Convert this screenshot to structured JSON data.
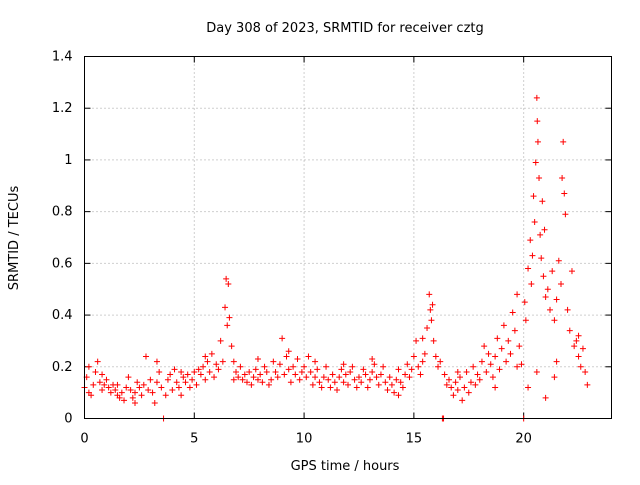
{
  "chart_data": {
    "type": "scatter",
    "title": "Day 308 of 2023, SRMTID for receiver cztg",
    "xlabel": "GPS time / hours",
    "ylabel": "SRMTID / TECUs",
    "xlim": [
      0,
      24
    ],
    "ylim": [
      0,
      1.4
    ],
    "x_ticks": [
      "0",
      "5",
      "10",
      "15",
      "20"
    ],
    "x_tick_values": [
      0,
      5,
      10,
      15,
      20
    ],
    "y_ticks": [
      "0",
      "0.2",
      "0.4",
      "0.6",
      "0.8",
      "1",
      "1.2",
      "1.4"
    ],
    "y_tick_values": [
      0,
      0.2,
      0.4,
      0.6,
      0.8,
      1.0,
      1.2,
      1.4
    ],
    "grid": true,
    "marker": "+",
    "color": "#ff0000",
    "series": [
      {
        "name": "cztg",
        "points": [
          [
            0.0,
            0.12
          ],
          [
            0.1,
            0.16
          ],
          [
            0.2,
            0.1
          ],
          [
            0.3,
            0.09
          ],
          [
            0.4,
            0.13
          ],
          [
            0.5,
            0.18
          ],
          [
            0.6,
            0.22
          ],
          [
            0.7,
            0.14
          ],
          [
            0.8,
            0.11
          ],
          [
            0.9,
            0.13
          ],
          [
            1.0,
            0.15
          ],
          [
            1.1,
            0.12
          ],
          [
            1.2,
            0.1
          ],
          [
            1.3,
            0.13
          ],
          [
            1.4,
            0.11
          ],
          [
            1.5,
            0.09
          ],
          [
            1.6,
            0.08
          ],
          [
            1.7,
            0.1
          ],
          [
            1.8,
            0.07
          ],
          [
            1.9,
            0.12
          ],
          [
            2.0,
            0.16
          ],
          [
            2.1,
            0.11
          ],
          [
            2.2,
            0.08
          ],
          [
            2.3,
            0.1
          ],
          [
            2.4,
            0.14
          ],
          [
            2.5,
            0.12
          ],
          [
            2.6,
            0.09
          ],
          [
            2.7,
            0.13
          ],
          [
            2.8,
            0.24
          ],
          [
            2.9,
            0.11
          ],
          [
            3.0,
            0.15
          ],
          [
            3.1,
            0.1
          ],
          [
            3.2,
            0.06
          ],
          [
            3.3,
            0.14
          ],
          [
            3.4,
            0.18
          ],
          [
            3.5,
            0.12
          ],
          [
            3.6,
            0.0
          ],
          [
            3.7,
            0.09
          ],
          [
            3.8,
            0.15
          ],
          [
            3.9,
            0.17
          ],
          [
            4.0,
            0.11
          ],
          [
            4.1,
            0.19
          ],
          [
            4.2,
            0.14
          ],
          [
            4.3,
            0.12
          ],
          [
            4.4,
            0.18
          ],
          [
            4.5,
            0.16
          ],
          [
            4.6,
            0.14
          ],
          [
            4.7,
            0.17
          ],
          [
            4.8,
            0.12
          ],
          [
            4.9,
            0.15
          ],
          [
            5.0,
            0.18
          ],
          [
            5.1,
            0.13
          ],
          [
            5.2,
            0.19
          ],
          [
            5.3,
            0.17
          ],
          [
            5.4,
            0.2
          ],
          [
            5.5,
            0.15
          ],
          [
            5.6,
            0.22
          ],
          [
            5.7,
            0.18
          ],
          [
            5.8,
            0.25
          ],
          [
            5.9,
            0.16
          ],
          [
            6.0,
            0.21
          ],
          [
            6.1,
            0.19
          ],
          [
            6.2,
            0.3
          ],
          [
            6.3,
            0.22
          ],
          [
            6.4,
            0.43
          ],
          [
            6.45,
            0.54
          ],
          [
            6.5,
            0.36
          ],
          [
            6.55,
            0.52
          ],
          [
            6.6,
            0.39
          ],
          [
            6.7,
            0.28
          ],
          [
            6.8,
            0.22
          ],
          [
            6.9,
            0.18
          ],
          [
            7.0,
            0.16
          ],
          [
            7.1,
            0.2
          ],
          [
            7.2,
            0.15
          ],
          [
            7.3,
            0.17
          ],
          [
            7.4,
            0.14
          ],
          [
            7.5,
            0.18
          ],
          [
            7.6,
            0.13
          ],
          [
            7.7,
            0.16
          ],
          [
            7.8,
            0.19
          ],
          [
            7.9,
            0.15
          ],
          [
            8.0,
            0.17
          ],
          [
            8.1,
            0.14
          ],
          [
            8.2,
            0.2
          ],
          [
            8.3,
            0.18
          ],
          [
            8.4,
            0.13
          ],
          [
            8.5,
            0.15
          ],
          [
            8.6,
            0.22
          ],
          [
            8.7,
            0.18
          ],
          [
            8.8,
            0.16
          ],
          [
            8.9,
            0.21
          ],
          [
            9.0,
            0.31
          ],
          [
            9.1,
            0.17
          ],
          [
            9.2,
            0.24
          ],
          [
            9.3,
            0.19
          ],
          [
            9.4,
            0.14
          ],
          [
            9.5,
            0.2
          ],
          [
            9.6,
            0.17
          ],
          [
            9.7,
            0.23
          ],
          [
            9.8,
            0.15
          ],
          [
            9.9,
            0.18
          ],
          [
            10.0,
            0.2
          ],
          [
            10.1,
            0.16
          ],
          [
            10.2,
            0.24
          ],
          [
            10.3,
            0.18
          ],
          [
            10.4,
            0.13
          ],
          [
            10.5,
            0.16
          ],
          [
            10.6,
            0.19
          ],
          [
            10.7,
            0.14
          ],
          [
            10.8,
            0.12
          ],
          [
            10.9,
            0.16
          ],
          [
            11.0,
            0.2
          ],
          [
            11.1,
            0.15
          ],
          [
            11.2,
            0.12
          ],
          [
            11.3,
            0.17
          ],
          [
            11.4,
            0.14
          ],
          [
            11.5,
            0.11
          ],
          [
            11.6,
            0.16
          ],
          [
            11.7,
            0.19
          ],
          [
            11.8,
            0.14
          ],
          [
            11.9,
            0.17
          ],
          [
            12.0,
            0.13
          ],
          [
            12.1,
            0.18
          ],
          [
            12.2,
            0.2
          ],
          [
            12.3,
            0.15
          ],
          [
            12.4,
            0.12
          ],
          [
            12.5,
            0.16
          ],
          [
            12.6,
            0.14
          ],
          [
            12.7,
            0.19
          ],
          [
            12.8,
            0.17
          ],
          [
            12.9,
            0.12
          ],
          [
            13.0,
            0.15
          ],
          [
            13.1,
            0.18
          ],
          [
            13.2,
            0.21
          ],
          [
            13.3,
            0.16
          ],
          [
            13.4,
            0.13
          ],
          [
            13.5,
            0.17
          ],
          [
            13.6,
            0.2
          ],
          [
            13.7,
            0.14
          ],
          [
            13.8,
            0.11
          ],
          [
            13.9,
            0.16
          ],
          [
            14.0,
            0.13
          ],
          [
            14.1,
            0.1
          ],
          [
            14.2,
            0.15
          ],
          [
            14.3,
            0.19
          ],
          [
            14.4,
            0.14
          ],
          [
            14.5,
            0.12
          ],
          [
            14.6,
            0.17
          ],
          [
            14.7,
            0.21
          ],
          [
            14.8,
            0.16
          ],
          [
            14.9,
            0.19
          ],
          [
            15.0,
            0.24
          ],
          [
            15.1,
            0.3
          ],
          [
            15.2,
            0.2
          ],
          [
            15.3,
            0.17
          ],
          [
            15.4,
            0.22
          ],
          [
            15.5,
            0.25
          ],
          [
            15.6,
            0.35
          ],
          [
            15.7,
            0.48
          ],
          [
            15.75,
            0.42
          ],
          [
            15.8,
            0.38
          ],
          [
            15.85,
            0.44
          ],
          [
            15.9,
            0.3
          ],
          [
            16.0,
            0.24
          ],
          [
            16.1,
            0.2
          ],
          [
            16.2,
            0.22
          ],
          [
            16.3,
            0.0
          ],
          [
            16.35,
            0.0
          ],
          [
            16.4,
            0.17
          ],
          [
            16.5,
            0.13
          ],
          [
            16.6,
            0.15
          ],
          [
            16.7,
            0.12
          ],
          [
            16.8,
            0.09
          ],
          [
            16.9,
            0.14
          ],
          [
            17.0,
            0.11
          ],
          [
            17.1,
            0.16
          ],
          [
            17.2,
            0.07
          ],
          [
            17.3,
            0.12
          ],
          [
            17.4,
            0.18
          ],
          [
            17.5,
            0.1
          ],
          [
            17.6,
            0.14
          ],
          [
            17.7,
            0.2
          ],
          [
            17.8,
            0.13
          ],
          [
            17.9,
            0.17
          ],
          [
            18.0,
            0.15
          ],
          [
            18.1,
            0.22
          ],
          [
            18.2,
            0.28
          ],
          [
            18.3,
            0.18
          ],
          [
            18.4,
            0.25
          ],
          [
            18.5,
            0.21
          ],
          [
            18.6,
            0.16
          ],
          [
            18.7,
            0.24
          ],
          [
            18.8,
            0.31
          ],
          [
            18.9,
            0.19
          ],
          [
            19.0,
            0.27
          ],
          [
            19.1,
            0.36
          ],
          [
            19.2,
            0.22
          ],
          [
            19.3,
            0.3
          ],
          [
            19.4,
            0.25
          ],
          [
            19.5,
            0.41
          ],
          [
            19.6,
            0.34
          ],
          [
            19.7,
            0.48
          ],
          [
            19.8,
            0.28
          ],
          [
            19.9,
            0.21
          ],
          [
            20.0,
            0.0
          ],
          [
            20.05,
            0.45
          ],
          [
            20.1,
            0.38
          ],
          [
            20.2,
            0.58
          ],
          [
            20.3,
            0.69
          ],
          [
            20.35,
            0.52
          ],
          [
            20.4,
            0.63
          ],
          [
            20.45,
            0.86
          ],
          [
            20.5,
            0.76
          ],
          [
            20.55,
            0.99
          ],
          [
            20.6,
            1.24
          ],
          [
            20.62,
            1.15
          ],
          [
            20.65,
            1.07
          ],
          [
            20.7,
            0.93
          ],
          [
            20.75,
            0.71
          ],
          [
            20.8,
            0.62
          ],
          [
            20.85,
            0.84
          ],
          [
            20.9,
            0.55
          ],
          [
            20.95,
            0.73
          ],
          [
            21.0,
            0.47
          ],
          [
            21.1,
            0.5
          ],
          [
            21.2,
            0.42
          ],
          [
            21.3,
            0.57
          ],
          [
            21.4,
            0.38
          ],
          [
            21.5,
            0.46
          ],
          [
            21.6,
            0.61
          ],
          [
            21.7,
            0.52
          ],
          [
            21.75,
            0.93
          ],
          [
            21.8,
            1.07
          ],
          [
            21.85,
            0.87
          ],
          [
            21.9,
            0.79
          ],
          [
            22.0,
            0.42
          ],
          [
            22.1,
            0.34
          ],
          [
            22.2,
            0.57
          ],
          [
            22.3,
            0.28
          ],
          [
            22.4,
            0.3
          ],
          [
            22.5,
            0.24
          ],
          [
            22.6,
            0.2
          ],
          [
            22.7,
            0.27
          ],
          [
            22.8,
            0.18
          ],
          [
            22.9,
            0.13
          ],
          [
            20.2,
            0.12
          ],
          [
            20.6,
            0.18
          ],
          [
            21.0,
            0.08
          ],
          [
            21.5,
            0.22
          ],
          [
            0.2,
            0.2
          ],
          [
            0.8,
            0.17
          ],
          [
            1.5,
            0.13
          ],
          [
            2.3,
            0.06
          ],
          [
            3.3,
            0.22
          ],
          [
            4.4,
            0.09
          ],
          [
            5.5,
            0.24
          ],
          [
            6.8,
            0.15
          ],
          [
            7.9,
            0.23
          ],
          [
            9.3,
            0.26
          ],
          [
            10.5,
            0.22
          ],
          [
            11.8,
            0.21
          ],
          [
            13.1,
            0.23
          ],
          [
            14.3,
            0.09
          ],
          [
            15.4,
            0.31
          ],
          [
            17.0,
            0.18
          ],
          [
            18.7,
            0.12
          ],
          [
            19.7,
            0.2
          ],
          [
            21.4,
            0.16
          ],
          [
            22.5,
            0.32
          ]
        ]
      }
    ]
  }
}
